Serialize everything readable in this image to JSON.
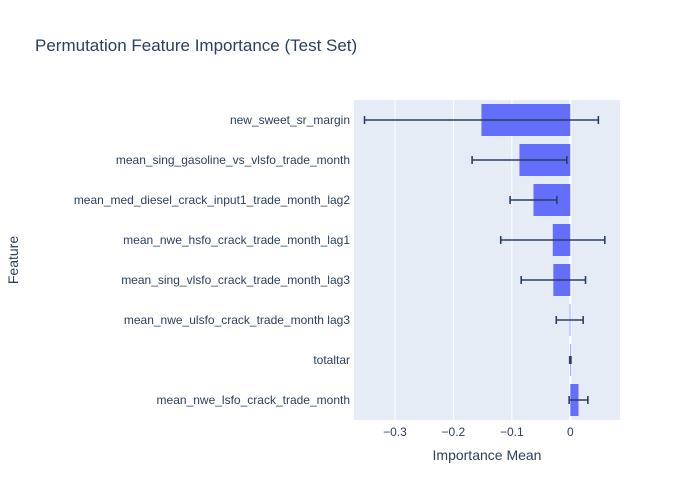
{
  "chart_data": {
    "type": "bar",
    "orientation": "horizontal",
    "title": "Permutation Feature Importance (Test Set)",
    "xlabel": "Importance Mean",
    "ylabel": "Feature",
    "xlim": [
      -0.37,
      0.085
    ],
    "xticks": [
      -0.3,
      -0.2,
      -0.1,
      0
    ],
    "xtick_labels": [
      "−0.3",
      "−0.2",
      "−0.1",
      "0"
    ],
    "grid": true,
    "bar_color": "#636efa",
    "error_color": "#2a3f5f",
    "plot_background": "#e5ecf6",
    "categories": [
      "new_sweet_sr_margin",
      "mean_sing_gasoline_vs_vlsfo_trade_month",
      "mean_med_diesel_crack_input1_trade_month_lag2",
      "mean_nwe_hsfo_crack_trade_month_lag1",
      "mean_sing_vlsfo_crack_trade_month_lag3",
      "mean_nwe_ulsfo_crack_trade_month lag3",
      "totaltar",
      "mean_nwe_lsfo_crack_trade_month"
    ],
    "values": [
      -0.152,
      -0.087,
      -0.063,
      -0.03,
      -0.029,
      -0.001,
      0.0,
      0.014
    ],
    "errors": [
      0.2,
      0.081,
      0.04,
      0.089,
      0.055,
      0.023,
      0.001,
      0.016
    ]
  }
}
